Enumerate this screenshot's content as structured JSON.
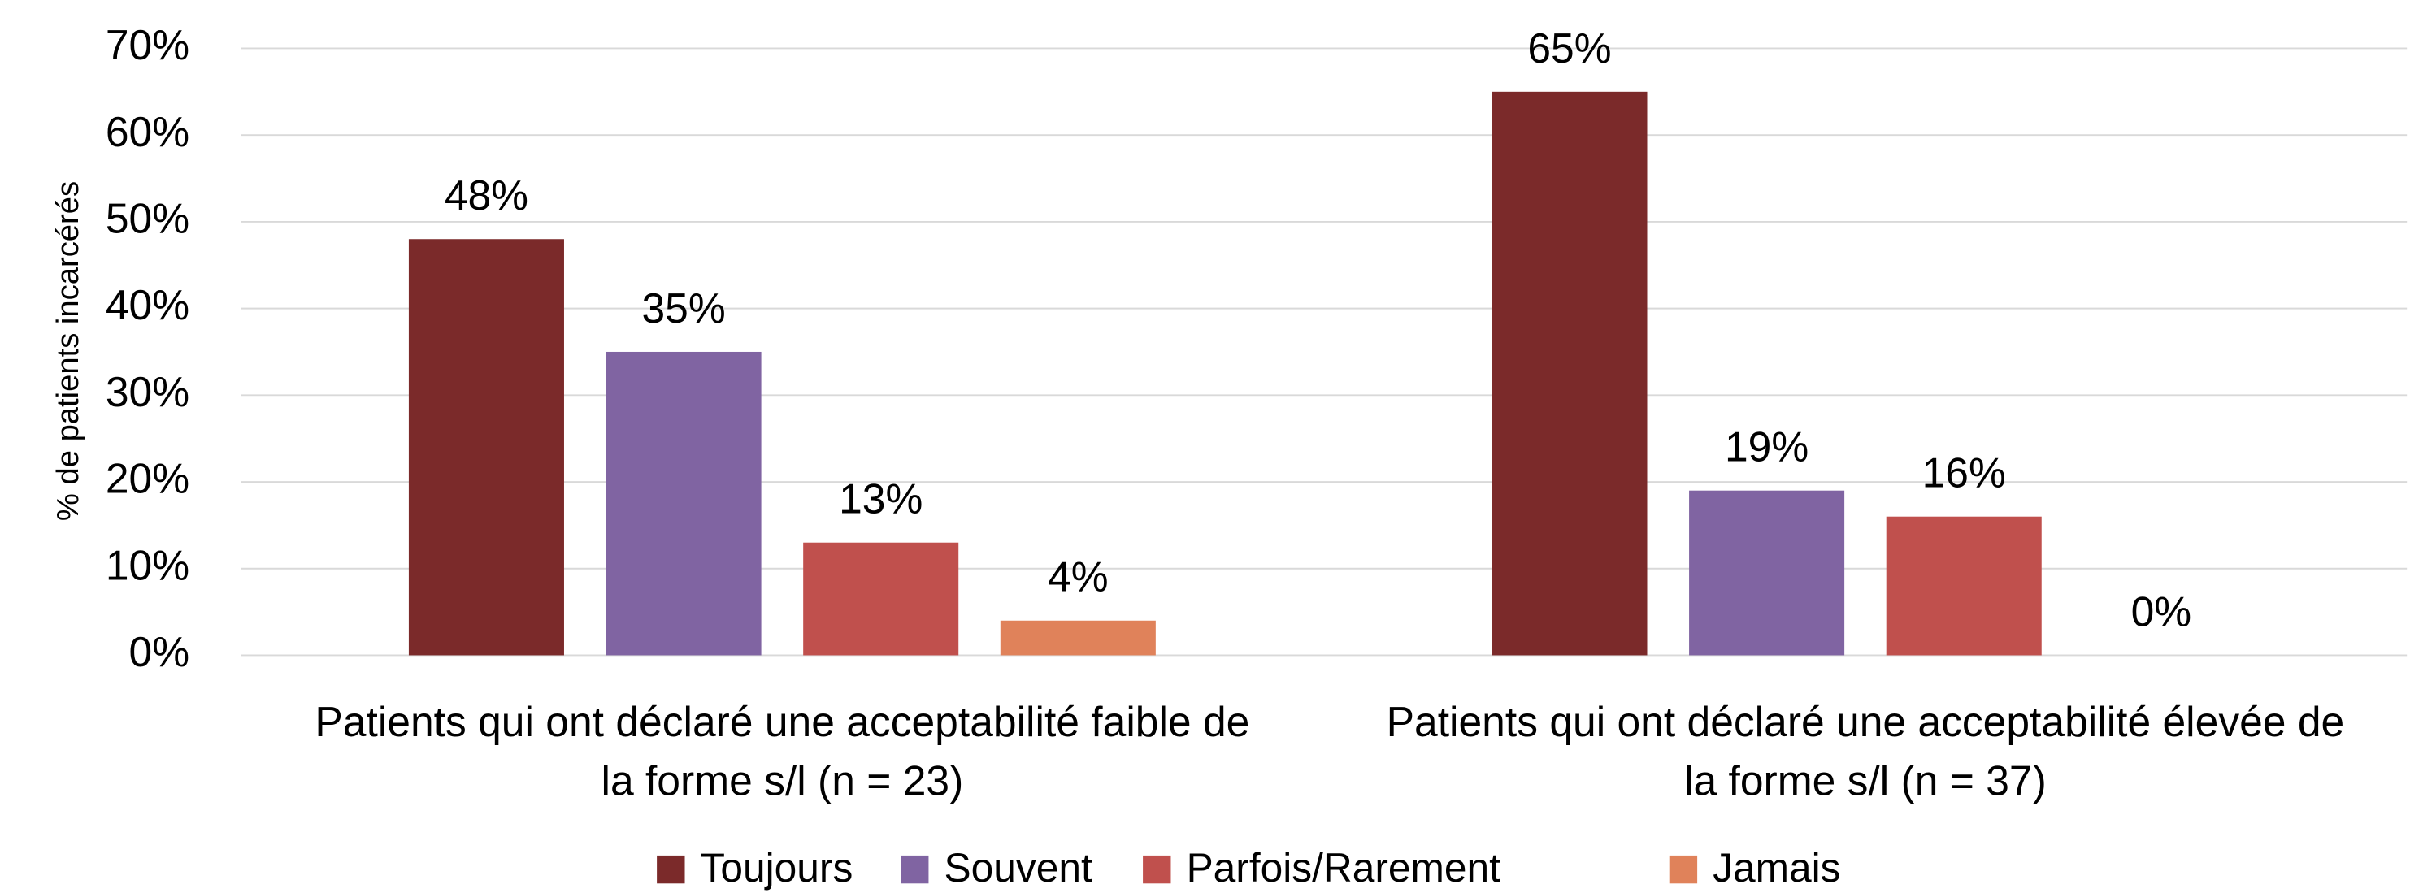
{
  "chart_data": {
    "type": "bar",
    "y_label": "% de patients incarcérés",
    "categories": [
      "Patients qui ont déclaré une acceptabilité faible de la forme s/l (n = 23)",
      "Patients qui ont déclaré une acceptabilité élevée de la forme s/l (n = 37)"
    ],
    "series": [
      {
        "name": "Toujours",
        "color": "#7b2a2a",
        "values": [
          48,
          65
        ],
        "value_labels": [
          "48%",
          "65%"
        ]
      },
      {
        "name": "Souvent",
        "color": "#8064a2",
        "values": [
          35,
          19
        ],
        "value_labels": [
          "35%",
          "19%"
        ]
      },
      {
        "name": "Parfois/Rarement",
        "color": "#c0504d",
        "values": [
          13,
          16
        ],
        "value_labels": [
          "13%",
          "16%"
        ]
      },
      {
        "name": "Jamais",
        "color": "#e0825a",
        "values": [
          4,
          0
        ],
        "value_labels": [
          "4%",
          "0%"
        ]
      }
    ],
    "ylim": [
      0,
      70
    ],
    "yticks": [
      {
        "value": 0,
        "label": "0%"
      },
      {
        "value": 10,
        "label": "10%"
      },
      {
        "value": 20,
        "label": "20%"
      },
      {
        "value": 30,
        "label": "30%"
      },
      {
        "value": 40,
        "label": "40%"
      },
      {
        "value": 50,
        "label": "50%"
      },
      {
        "value": 60,
        "label": "60%"
      },
      {
        "value": 70,
        "label": "70%"
      }
    ],
    "grid": true,
    "legend": "bottom"
  }
}
